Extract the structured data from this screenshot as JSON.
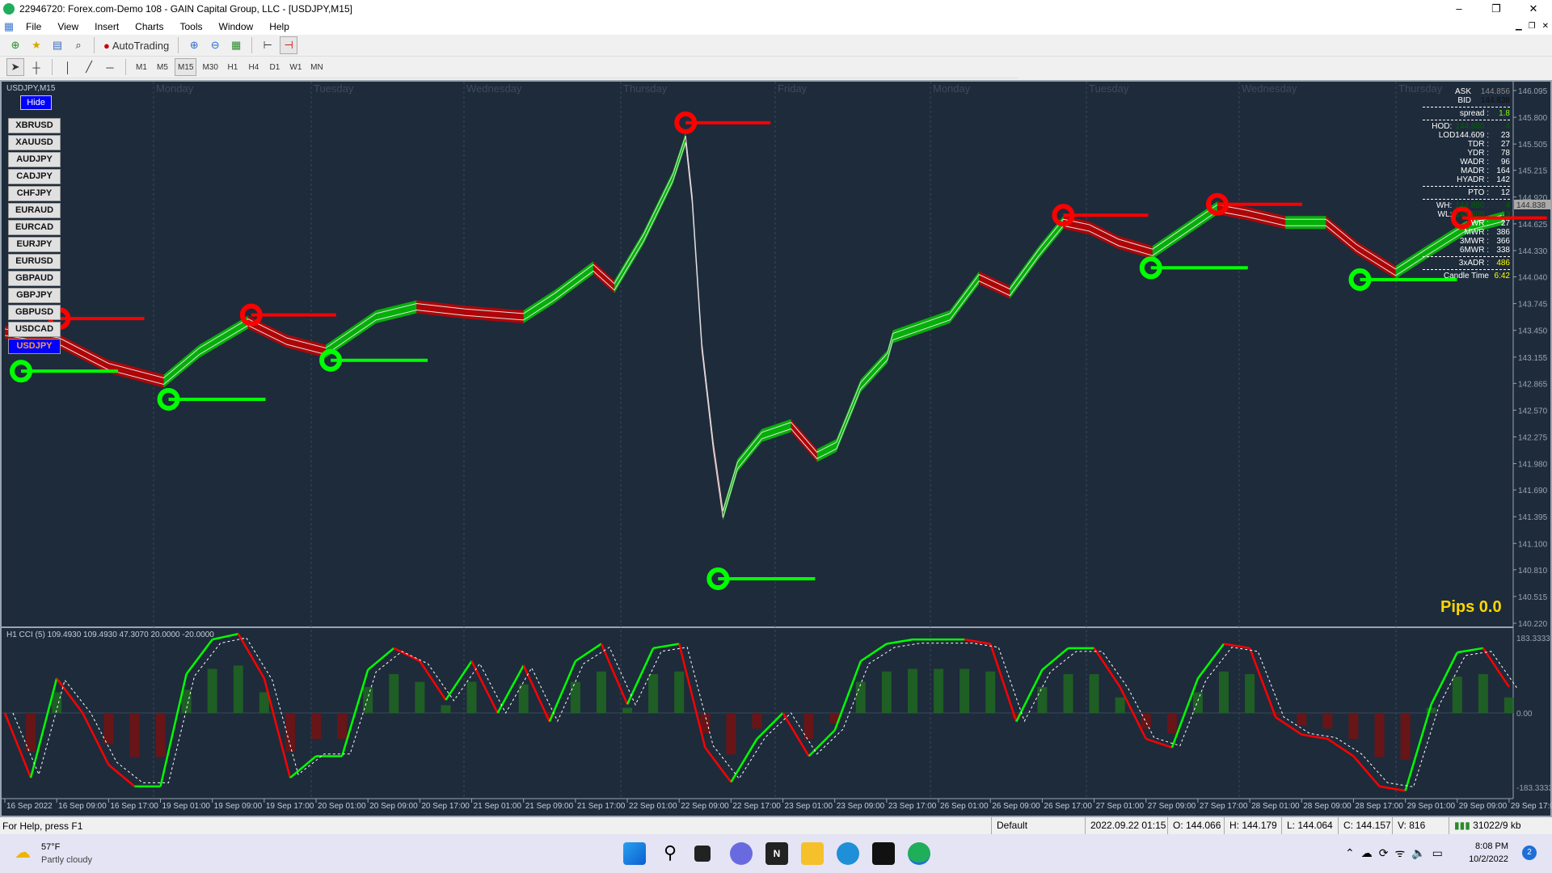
{
  "window": {
    "title": "22946720: Forex.com-Demo 108 - GAIN Capital Group, LLC - [USDJPY,M15]",
    "controls": [
      "–",
      "❐",
      "✕"
    ]
  },
  "menu": [
    "File",
    "View",
    "Insert",
    "Charts",
    "Tools",
    "Window",
    "Help"
  ],
  "toolbar": {
    "autotrading_label": "AutoTrading",
    "icons": [
      "new-order-icon",
      "profiles-icon",
      "market-watch-icon",
      "navigator-icon",
      "autotrading-icon",
      "zoom-in-icon",
      "zoom-out-icon",
      "tile-windows-icon",
      "chart-shift-icon",
      "autoscroll-icon"
    ]
  },
  "timeframes": [
    "M1",
    "M5",
    "M15",
    "M30",
    "H1",
    "H4",
    "D1",
    "W1",
    "MN"
  ],
  "active_timeframe": "M15",
  "chart": {
    "symbol_label": "USDJPY,M15",
    "hide_label": "Hide",
    "pips_label": "Pips 0.0",
    "symbols": [
      "XBRUSD",
      "XAUUSD",
      "AUDJPY",
      "CADJPY",
      "CHFJPY",
      "EURAUD",
      "EURCAD",
      "EURJPY",
      "EURUSD",
      "GBPAUD",
      "GBPJPY",
      "GBPUSD",
      "USDCAD",
      "USDJPY"
    ],
    "selected_symbol": "USDJPY",
    "day_labels": [
      "Monday",
      "Tuesday",
      "Wednesday",
      "Thursday",
      "Friday",
      "Monday",
      "Tuesday",
      "Wednesday",
      "Thursday"
    ],
    "current_price": "144.838"
  },
  "info_panel": {
    "ask_label": "ASK",
    "ask": "144.856",
    "bid_label": "BID",
    "bid": "144.838",
    "rows1": [
      {
        "k": "spread :",
        "v": "1.8",
        "c": "#7fff00"
      }
    ],
    "rows2": [
      {
        "k": "HOD:",
        "mid": "144.880 :",
        "v": "4",
        "c": "#006400"
      },
      {
        "k": "LOD144.609 :",
        "v": "23"
      },
      {
        "k": "TDR :",
        "v": "27"
      },
      {
        "k": "YDR :",
        "v": "78"
      },
      {
        "k": "WADR :",
        "v": "96"
      },
      {
        "k": "MADR :",
        "v": "164"
      },
      {
        "k": "HYADR :",
        "v": "142"
      }
    ],
    "rows3": [
      {
        "k": "PTO :",
        "v": "12"
      }
    ],
    "rows4": [
      {
        "k": "WH:",
        "mid": "144.880 :",
        "v": "4",
        "c": "#006400"
      },
      {
        "k": "WL:",
        "mid": "144.609 :",
        "v": "23",
        "c": "#006400"
      },
      {
        "k": "WR :",
        "v": "27"
      },
      {
        "k": "MWR :",
        "v": "386"
      },
      {
        "k": "3MWR :",
        "v": "366"
      },
      {
        "k": "6MWR :",
        "v": "338"
      }
    ],
    "rows5": [
      {
        "k": "3xADR :",
        "v": "486",
        "c": "#ffff00"
      }
    ],
    "rows6": [
      {
        "k": "Candle Time",
        "v": "6:42",
        "c": "#ffff00"
      }
    ]
  },
  "cci": {
    "label": "H1 CCI (5) 109.4930 109.4930 47.3070 20.0000 -20.0000",
    "axis": [
      "183.3333",
      "0.00",
      "-183.3333"
    ]
  },
  "colors": {
    "background": "#1e2b3b",
    "bull": "#00c800",
    "bear": "#c80000",
    "buy_signal": "#00ff00",
    "sell_signal": "#ff0000",
    "pips": "#ffd700"
  },
  "chart_data": {
    "type": "line",
    "price_axis_ticks": [
      "146.095",
      "145.800",
      "145.505",
      "145.215",
      "144.920",
      "144.625",
      "144.330",
      "144.040",
      "143.745",
      "143.450",
      "143.155",
      "142.865",
      "142.570",
      "142.275",
      "141.980",
      "141.690",
      "141.395",
      "141.100",
      "140.810",
      "140.515",
      "140.220"
    ],
    "ylim": [
      140.22,
      146.095
    ],
    "time_ticks": [
      "16 Sep 2022",
      "16 Sep 09:00",
      "16 Sep 17:00",
      "19 Sep 01:00",
      "19 Sep 09:00",
      "19 Sep 17:00",
      "20 Sep 01:00",
      "20 Sep 09:00",
      "20 Sep 17:00",
      "21 Sep 01:00",
      "21 Sep 09:00",
      "21 Sep 17:00",
      "22 Sep 01:00",
      "22 Sep 09:00",
      "22 Sep 17:00",
      "23 Sep 01:00",
      "23 Sep 09:00",
      "23 Sep 17:00",
      "26 Sep 01:00",
      "26 Sep 09:00",
      "26 Sep 17:00",
      "27 Sep 01:00",
      "27 Sep 09:00",
      "27 Sep 17:00",
      "28 Sep 01:00",
      "28 Sep 09:00",
      "28 Sep 17:00",
      "29 Sep 01:00",
      "29 Sep 09:00",
      "29 Sep 17:00"
    ],
    "price": [
      [
        "2022-09-16 01:00",
        143.43
      ],
      [
        "2022-09-16 09:25",
        143.33
      ],
      [
        "2022-09-16 17:00",
        143.05
      ],
      [
        "2022-09-19 01:30",
        142.89
      ],
      [
        "2022-09-19 07:00",
        143.22
      ],
      [
        "2022-09-19 14:30",
        143.54
      ],
      [
        "2022-09-19 20:30",
        143.33
      ],
      [
        "2022-09-20 02:30",
        143.22
      ],
      [
        "2022-09-20 10:15",
        143.6
      ],
      [
        "2022-09-20 16:30",
        143.71
      ],
      [
        "2022-09-21 00:00",
        143.65
      ],
      [
        "2022-09-21 09:00",
        143.6
      ],
      [
        "2022-09-21 13:45",
        143.82
      ],
      [
        "2022-09-21 19:45",
        144.14
      ],
      [
        "2022-09-21 23:00",
        143.93
      ],
      [
        "2022-09-22 03:30",
        144.47
      ],
      [
        "2022-09-22 08:00",
        145.13
      ],
      [
        "2022-09-22 10:00",
        145.56
      ],
      [
        "2022-09-22 11:00",
        144.9
      ],
      [
        "2022-09-22 12:30",
        143.27
      ],
      [
        "2022-09-22 14:15",
        142.18
      ],
      [
        "2022-09-22 15:45",
        141.42
      ],
      [
        "2022-09-22 18:00",
        141.96
      ],
      [
        "2022-09-22 21:45",
        142.29
      ],
      [
        "2022-09-23 02:15",
        142.4
      ],
      [
        "2022-09-23 06:15",
        142.07
      ],
      [
        "2022-09-23 09:15",
        142.18
      ],
      [
        "2022-09-23 13:00",
        142.84
      ],
      [
        "2022-09-23 17:45",
        143.16
      ],
      [
        "2022-09-23 23:45",
        143.38
      ],
      [
        "2022-09-26 02:45",
        143.6
      ],
      [
        "2022-09-26 07:15",
        144.03
      ],
      [
        "2022-09-26 12:00",
        143.87
      ],
      [
        "2022-09-26 16:30",
        144.31
      ],
      [
        "2022-09-26 20:15",
        144.64
      ],
      [
        "2022-09-27 00:15",
        144.58
      ],
      [
        "2022-09-27 04:45",
        144.42
      ],
      [
        "2022-09-27 10:00",
        144.31
      ],
      [
        "2022-09-27 15:30",
        144.58
      ],
      [
        "2022-09-27 20:00",
        144.8
      ],
      [
        "2022-09-28 00:30",
        144.74
      ],
      [
        "2022-09-28 06:30",
        144.64
      ],
      [
        "2022-09-28 12:45",
        144.64
      ],
      [
        "2022-09-28 17:30",
        144.36
      ],
      [
        "2022-09-28 23:30",
        144.09
      ],
      [
        "2022-09-29 04:15",
        144.31
      ],
      [
        "2022-09-29 10:15",
        144.58
      ],
      [
        "2022-09-29 16:15",
        144.69
      ]
    ],
    "sell_signals": [
      [
        "2022-09-16 09:25",
        143.58
      ],
      [
        "2022-09-19 15:00",
        143.62
      ],
      [
        "2022-09-22 10:00",
        145.74
      ],
      [
        "2022-09-26 20:15",
        144.72
      ],
      [
        "2022-09-27 20:00",
        144.84
      ],
      [
        "2022-09-29 09:45",
        144.69
      ]
    ],
    "buy_signals": [
      [
        "2022-09-16 03:30",
        143.0
      ],
      [
        "2022-09-19 02:15",
        142.69
      ],
      [
        "2022-09-20 03:15",
        143.12
      ],
      [
        "2022-09-22 15:00",
        140.71
      ],
      [
        "2022-09-27 09:45",
        144.14
      ],
      [
        "2022-09-28 18:00",
        144.01
      ]
    ],
    "cci_ylim": [
      -183.3333,
      183.3333
    ],
    "cci_values": [
      0,
      -150,
      80,
      0,
      -120,
      -170,
      -170,
      90,
      170,
      183,
      80,
      -150,
      -100,
      -100,
      100,
      150,
      120,
      30,
      120,
      0,
      110,
      -20,
      120,
      160,
      20,
      150,
      160,
      -80,
      -160,
      -60,
      0,
      -100,
      -40,
      120,
      160,
      170,
      170,
      170,
      160,
      -20,
      100,
      150,
      150,
      60,
      -60,
      -80,
      80,
      160,
      150,
      -10,
      -50,
      -60,
      -100,
      -170,
      -180,
      20,
      140,
      150,
      60
    ]
  },
  "statusbar": {
    "help": "For Help, press F1",
    "profile": "Default",
    "datetime": "2022.09.22 01:15",
    "open": "O: 144.066",
    "high": "H: 144.179",
    "low": "L: 144.064",
    "close": "C: 144.157",
    "volume": "V: 816",
    "traffic": "31022/9 kb"
  },
  "taskbar": {
    "temp": "57°F",
    "weather": "Partly cloudy",
    "time": "8:08 PM",
    "date": "10/2/2022",
    "notifications": "2"
  }
}
